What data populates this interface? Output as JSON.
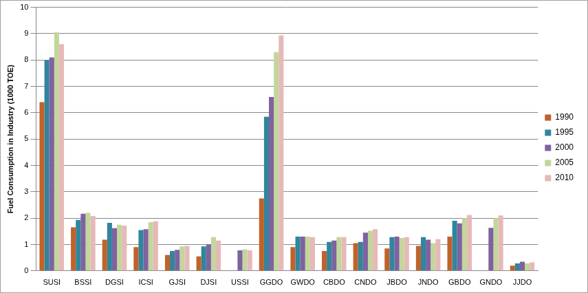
{
  "chart_data": {
    "type": "bar",
    "y_label": "Fuel Consumption in Industry (1000 TOE)",
    "categories": [
      "SUSI",
      "BSSI",
      "DGSI",
      "ICSI",
      "GJSI",
      "DJSI",
      "USSI",
      "GGDO",
      "GWDO",
      "CBDO",
      "CNDO",
      "JBDO",
      "JNDO",
      "GBDO",
      "GNDO",
      "JJDO"
    ],
    "series": [
      {
        "name": "1990",
        "color": "#c0622b",
        "values": [
          6.4,
          1.65,
          1.18,
          0.9,
          0.6,
          0.55,
          null,
          2.75,
          0.9,
          0.75,
          1.05,
          0.85,
          0.95,
          1.3,
          null,
          0.2
        ]
      },
      {
        "name": "1995",
        "color": "#31859c",
        "values": [
          8.0,
          1.93,
          1.82,
          1.55,
          0.75,
          0.93,
          null,
          5.85,
          1.3,
          1.1,
          1.1,
          1.28,
          1.28,
          1.9,
          null,
          0.28
        ]
      },
      {
        "name": "2000",
        "color": "#7f62a0",
        "values": [
          8.1,
          2.17,
          1.62,
          1.58,
          0.8,
          1.0,
          0.78,
          6.6,
          1.3,
          1.15,
          1.45,
          1.3,
          1.18,
          1.8,
          1.63,
          0.35
        ]
      },
      {
        "name": "2005",
        "color": "#c3d69b",
        "values": [
          9.05,
          2.2,
          1.75,
          1.85,
          0.93,
          1.28,
          0.82,
          8.3,
          1.3,
          1.28,
          1.52,
          1.25,
          1.05,
          2.0,
          2.0,
          0.28
        ]
      },
      {
        "name": "2010",
        "color": "#e6b9b8",
        "values": [
          8.6,
          2.08,
          1.72,
          1.88,
          0.95,
          1.15,
          0.78,
          8.93,
          1.28,
          1.28,
          1.58,
          1.28,
          1.2,
          2.12,
          2.1,
          0.32
        ]
      }
    ],
    "ylim": [
      0,
      10
    ],
    "yticks": [
      0,
      1,
      2,
      3,
      4,
      5,
      6,
      7,
      8,
      9,
      10
    ],
    "grid": true,
    "legend": "right"
  }
}
